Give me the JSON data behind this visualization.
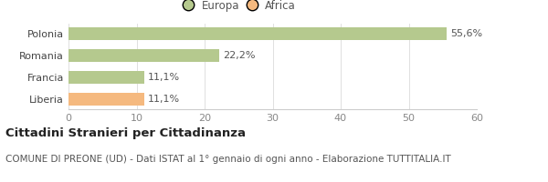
{
  "categories": [
    "Polonia",
    "Romania",
    "Francia",
    "Liberia"
  ],
  "values": [
    55.6,
    22.2,
    11.1,
    11.1
  ],
  "bar_colors": [
    "#b5c98e",
    "#b5c98e",
    "#b5c98e",
    "#f5b97f"
  ],
  "bar_labels": [
    "55,6%",
    "22,2%",
    "11,1%",
    "11,1%"
  ],
  "legend_labels": [
    "Europa",
    "Africa"
  ],
  "legend_colors": [
    "#b5c98e",
    "#f5b97f"
  ],
  "xlim": [
    0,
    60
  ],
  "xticks": [
    0,
    10,
    20,
    30,
    40,
    50,
    60
  ],
  "title_bold": "Cittadini Stranieri per Cittadinanza",
  "subtitle": "COMUNE DI PREONE (UD) - Dati ISTAT al 1° gennaio di ogni anno - Elaborazione TUTTITALIA.IT",
  "background_color": "#ffffff",
  "bar_height": 0.55,
  "title_fontsize": 9.5,
  "subtitle_fontsize": 7.5,
  "tick_fontsize": 8,
  "label_fontsize": 8,
  "legend_fontsize": 8.5
}
